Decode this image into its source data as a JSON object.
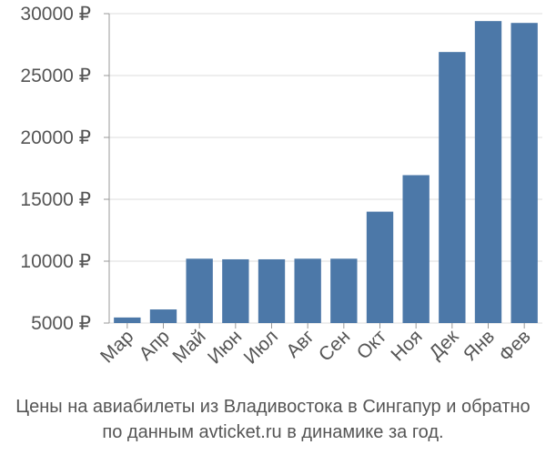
{
  "chart_data": {
    "type": "bar",
    "categories": [
      "Мар",
      "Апр",
      "Май",
      "Июн",
      "Июл",
      "Авг",
      "Сен",
      "Окт",
      "Ноя",
      "Дек",
      "Янв",
      "Фев"
    ],
    "values": [
      5450,
      6100,
      10200,
      10150,
      10150,
      10200,
      10200,
      14000,
      16950,
      26900,
      29400,
      29250
    ],
    "ylim": [
      5000,
      30000
    ],
    "yticks": [
      5000,
      10000,
      15000,
      20000,
      25000,
      30000
    ],
    "ytick_labels": [
      "5000 ₽",
      "10000 ₽",
      "15000 ₽",
      "20000 ₽",
      "25000 ₽",
      "30000 ₽"
    ],
    "bar_color": "#4c78a8",
    "grid": "horizontal",
    "legend": "none"
  },
  "caption": {
    "line1": "Цены на авиабилеты из Владивостока в Сингапур и обратно",
    "line2": "по данным avticket.ru в динамике за год."
  }
}
